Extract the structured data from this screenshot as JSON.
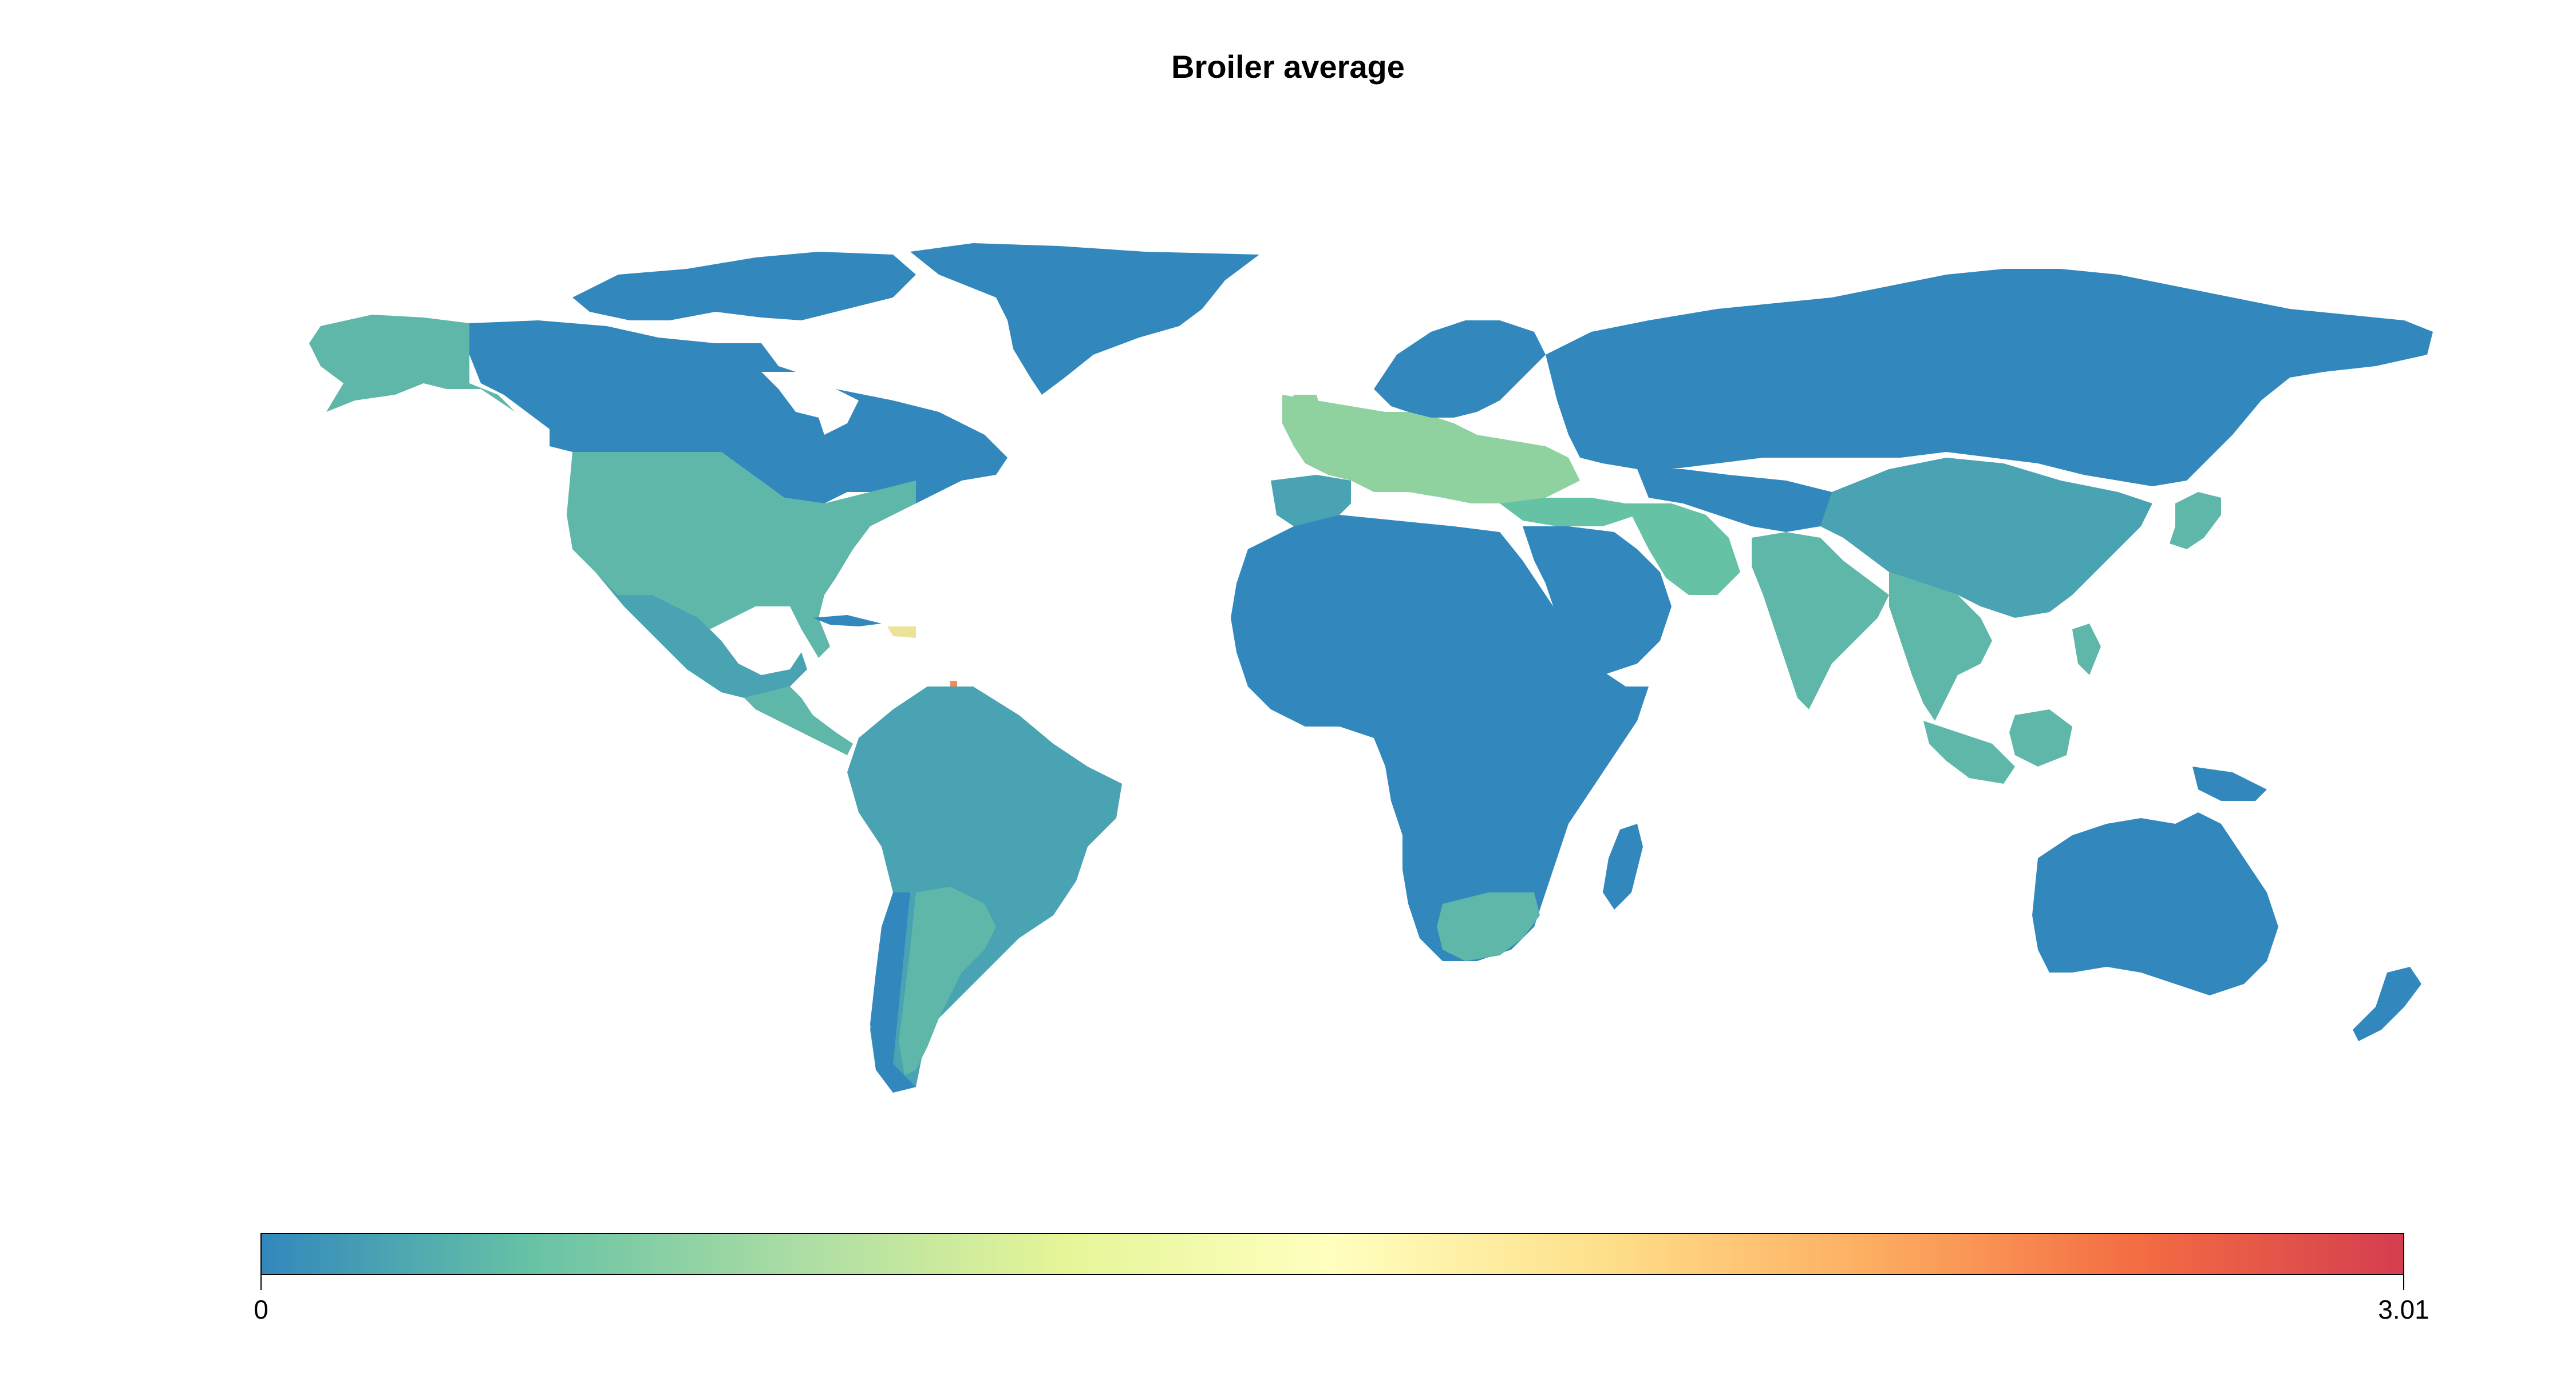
{
  "title": "Broiler average",
  "legend": {
    "min_label": "0",
    "max_label": "3.01",
    "min": 0,
    "max": 3.01,
    "colors": [
      "#3288bd",
      "#66c2a5",
      "#abdda4",
      "#e6f598",
      "#ffffbf",
      "#fee08b",
      "#fdae61",
      "#f46d43",
      "#d53e4f"
    ]
  },
  "palette": {
    "low": "#3288bd",
    "low_mid": "#4aa3b2",
    "mid_low": "#5eb7a8",
    "mid": "#8fd2a0",
    "high_mid": "#ece39a",
    "accent": "#f08b5a"
  }
}
